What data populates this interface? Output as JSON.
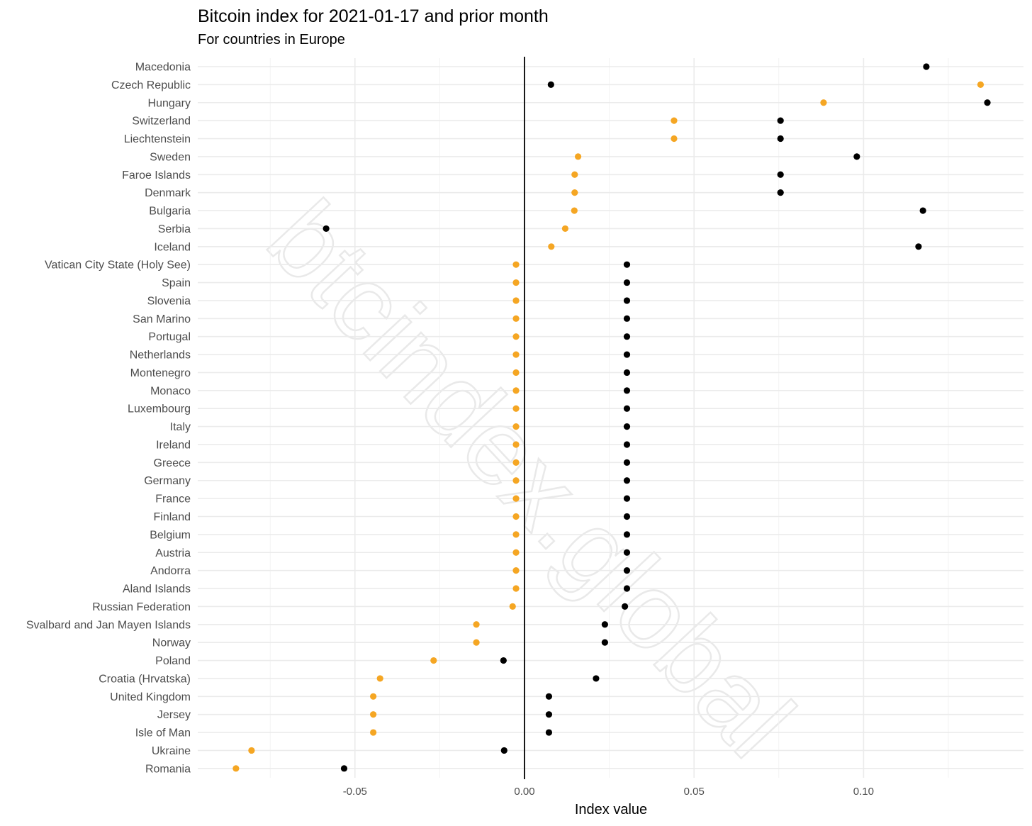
{
  "chart_data": {
    "type": "scatter",
    "title": "Bitcoin index for 2021-01-17 and prior month",
    "subtitle": "For countries in Europe",
    "xlabel": "Index value",
    "ylabel": "",
    "xlim": [
      -0.0955,
      0.1415
    ],
    "xticks": [
      -0.05,
      0.0,
      0.05,
      0.1
    ],
    "xtick_labels": [
      "-0.05",
      "0.00",
      "0.05",
      "0.10"
    ],
    "grid": true,
    "zero_line": 0.0,
    "watermark": "btcindex.global",
    "colors": {
      "current": "#000000",
      "prior": "#f5a623"
    },
    "categories": [
      "Macedonia",
      "Czech Republic",
      "Hungary",
      "Switzerland",
      "Liechtenstein",
      "Sweden",
      "Faroe Islands",
      "Denmark",
      "Bulgaria",
      "Serbia",
      "Iceland",
      "Vatican City State (Holy See)",
      "Spain",
      "Slovenia",
      "San Marino",
      "Portugal",
      "Netherlands",
      "Montenegro",
      "Monaco",
      "Luxembourg",
      "Italy",
      "Ireland",
      "Greece",
      "Germany",
      "France",
      "Finland",
      "Belgium",
      "Austria",
      "Andorra",
      "Aland Islands",
      "Russian Federation",
      "Svalbard and Jan Mayen Islands",
      "Norway",
      "Poland",
      "Croatia (Hrvatska)",
      "United Kingdom",
      "Jersey",
      "Isle of Man",
      "Ukraine",
      "Romania"
    ],
    "series": [
      {
        "values": [
          0.1185,
          0.0078,
          0.1365,
          0.0755,
          0.0755,
          0.098,
          0.0755,
          0.0755,
          0.1175,
          -0.0585,
          0.1162,
          0.0302,
          0.0302,
          0.0302,
          0.0302,
          0.0302,
          0.0302,
          0.0302,
          0.0302,
          0.0302,
          0.0302,
          0.0302,
          0.0302,
          0.0302,
          0.0302,
          0.0302,
          0.0302,
          0.0302,
          0.0302,
          0.0302,
          0.0296,
          0.0237,
          0.0237,
          -0.0062,
          0.0211,
          0.0072,
          0.0072,
          0.0072,
          -0.006,
          -0.0532
        ]
      },
      {
        "values": [
          null,
          0.1345,
          0.0882,
          0.0441,
          0.0441,
          0.0158,
          0.0148,
          0.0148,
          0.0147,
          0.012,
          0.0079,
          -0.0025,
          -0.0025,
          -0.0025,
          -0.0025,
          -0.0025,
          -0.0025,
          -0.0025,
          -0.0025,
          -0.0025,
          -0.0025,
          -0.0025,
          -0.0025,
          -0.0025,
          -0.0025,
          -0.0025,
          -0.0025,
          -0.0025,
          -0.0025,
          -0.0025,
          -0.0035,
          -0.0142,
          -0.0142,
          -0.0268,
          -0.0426,
          -0.0446,
          -0.0446,
          -0.0446,
          -0.0805,
          -0.0851
        ]
      }
    ]
  }
}
